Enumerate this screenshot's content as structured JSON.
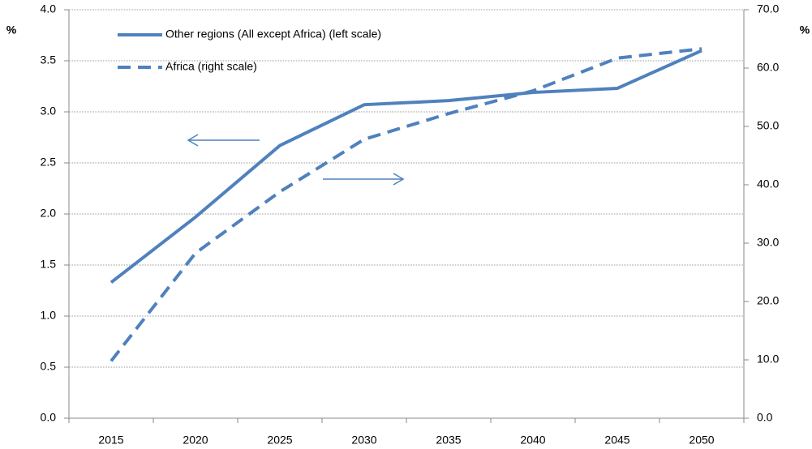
{
  "chart_data": {
    "type": "line",
    "y_label": "%",
    "y2_label": "%",
    "categories": [
      "2015",
      "2020",
      "2025",
      "2030",
      "2035",
      "2040",
      "2045",
      "2050"
    ],
    "series": [
      {
        "name": "Other regions (All except Africa) (left scale)",
        "color": "#4f81bd",
        "line_style": "solid",
        "values": [
          1.33,
          1.97,
          2.67,
          3.07,
          3.11,
          3.19,
          3.23,
          3.6
        ]
      },
      {
        "name": "Africa (right scale)",
        "color": "#4f81bd",
        "line_style": "dashed",
        "axis": "y2",
        "values": [
          9.8,
          28.3,
          38.8,
          47.8,
          52.2,
          56.1,
          61.7,
          63.3
        ]
      }
    ],
    "ylim": [
      0,
      4
    ],
    "yticks": [
      {
        "value": 0,
        "label": "0.0"
      },
      0.5,
      {
        "value": 1,
        "label": "1.0"
      },
      1.5,
      {
        "value": 2,
        "label": "2.0"
      },
      2.5,
      {
        "value": 3,
        "label": "3.0"
      },
      3.5,
      {
        "value": 4,
        "label": "4.0"
      }
    ],
    "y2lim": [
      0,
      70
    ],
    "y2ticks": [
      {
        "value": 0,
        "label": "0.0"
      },
      {
        "value": 10,
        "label": "10.0"
      },
      {
        "value": 20,
        "label": "20.0"
      },
      {
        "value": 30,
        "label": "30.0"
      },
      {
        "value": 40,
        "label": "40.0"
      },
      {
        "value": 50,
        "label": "50.0"
      },
      {
        "value": 60,
        "label": "60.0"
      },
      {
        "value": 70,
        "label": "70.0"
      }
    ],
    "grid": true
  }
}
